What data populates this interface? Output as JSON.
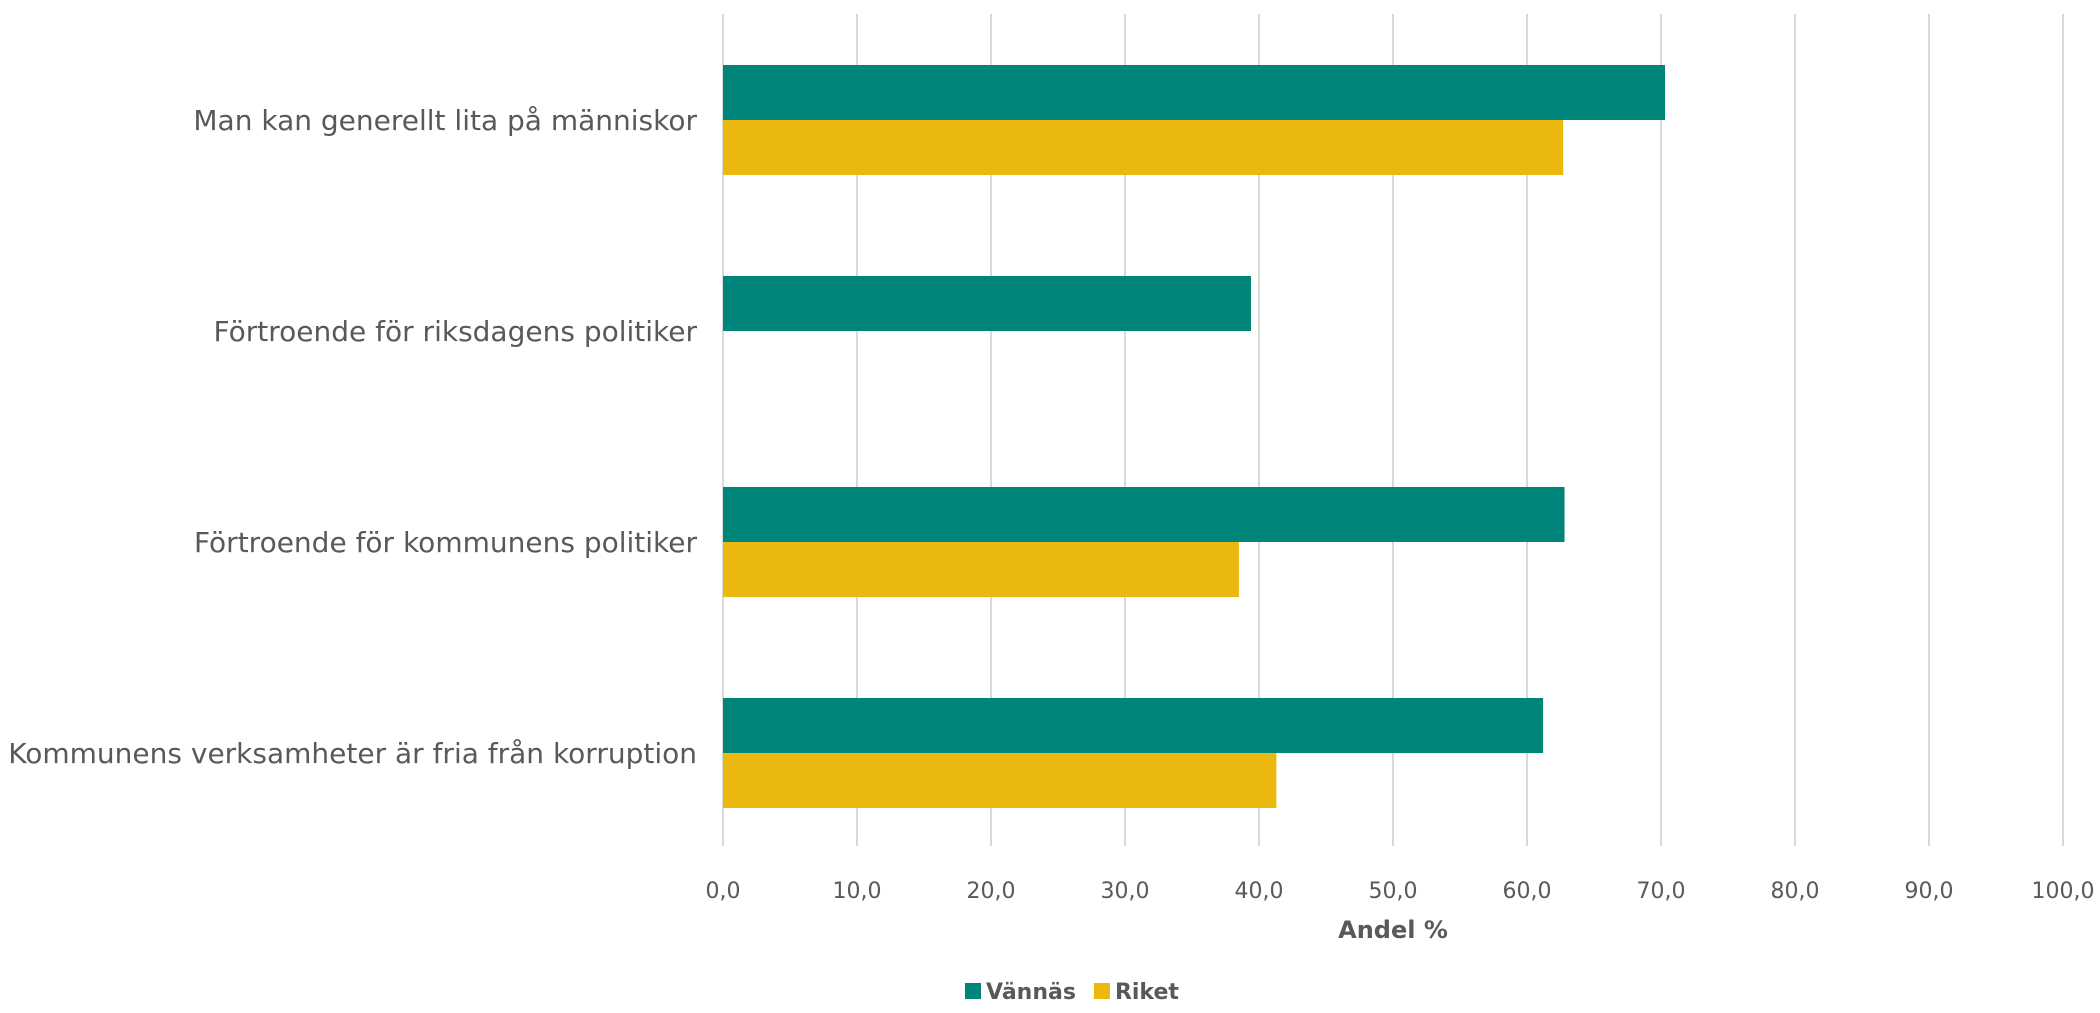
{
  "chart_data": {
    "type": "bar",
    "orientation": "horizontal",
    "categories": [
      "Man kan generellt lita på människor",
      "Förtroende för riksdagens politiker",
      "Förtroende för kommunens politiker",
      "Kommunens verksamheter är fria från korruption"
    ],
    "series": [
      {
        "name": "Vännäs",
        "color": "#00857A",
        "values": [
          70.3,
          39.4,
          62.8,
          61.2
        ]
      },
      {
        "name": "Riket",
        "color": "#EAB80E",
        "values": [
          62.7,
          null,
          38.5,
          41.3
        ]
      }
    ],
    "xlabel": "Andel %",
    "xlim": [
      0,
      100
    ],
    "xticks": [
      "0,0",
      "10,0",
      "20,0",
      "30,0",
      "40,0",
      "50,0",
      "60,0",
      "70,0",
      "80,0",
      "90,0",
      "100,0"
    ],
    "grid": true,
    "legend_position": "bottom"
  }
}
